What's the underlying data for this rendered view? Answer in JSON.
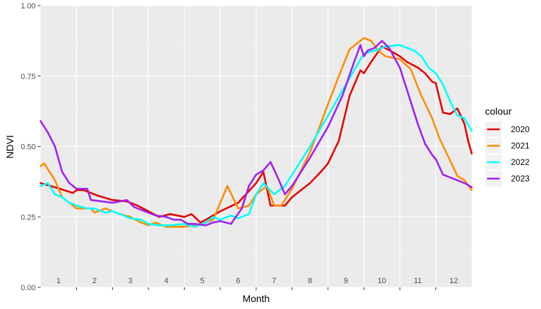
{
  "chart_data": {
    "type": "line",
    "xlabel": "Month",
    "ylabel": "NDVI",
    "ylim": [
      0,
      1
    ],
    "xlim": [
      0,
      12
    ],
    "y_ticks": [
      "0.00",
      "0.25",
      "0.50",
      "0.75",
      "1.00"
    ],
    "y_tick_values": [
      0,
      0.25,
      0.5,
      0.75,
      1.0
    ],
    "month_labels": [
      "1",
      "2",
      "3",
      "4",
      "5",
      "6",
      "7",
      "8",
      "9",
      "10",
      "11",
      "12"
    ],
    "grid": true,
    "legend": {
      "title": "colour",
      "position": "right"
    },
    "series": [
      {
        "name": "2020",
        "color": "#e60000",
        "x": [
          0.0,
          0.4,
          0.9,
          1.0,
          1.2,
          1.6,
          2.0,
          2.4,
          2.7,
          3.0,
          3.3,
          3.6,
          3.8,
          4.0,
          4.2,
          4.45,
          4.6,
          5.0,
          5.5,
          6.0,
          6.2,
          6.4,
          6.8,
          7.0,
          7.5,
          7.8,
          8.0,
          8.3,
          8.6,
          8.9,
          9.0,
          9.2,
          9.5,
          9.8,
          10.0,
          10.2,
          10.5,
          10.7,
          10.9,
          11.0,
          11.2,
          11.4,
          11.6,
          11.8,
          11.9,
          12.0
        ],
        "y": [
          0.37,
          0.355,
          0.335,
          0.345,
          0.345,
          0.325,
          0.31,
          0.305,
          0.29,
          0.27,
          0.25,
          0.26,
          0.255,
          0.25,
          0.26,
          0.23,
          0.24,
          0.27,
          0.3,
          0.37,
          0.41,
          0.29,
          0.29,
          0.32,
          0.37,
          0.41,
          0.44,
          0.52,
          0.68,
          0.77,
          0.76,
          0.8,
          0.855,
          0.835,
          0.82,
          0.8,
          0.78,
          0.76,
          0.73,
          0.725,
          0.62,
          0.615,
          0.635,
          0.58,
          0.52,
          0.475
        ]
      },
      {
        "name": "2021",
        "color": "#ff8c00",
        "x": [
          0.0,
          0.1,
          0.4,
          0.6,
          0.9,
          1.0,
          1.4,
          1.5,
          1.8,
          2.0,
          2.2,
          2.5,
          2.8,
          3.0,
          3.2,
          3.5,
          4.0,
          4.5,
          4.8,
          5.0,
          5.2,
          5.5,
          5.8,
          6.0,
          6.3,
          6.5,
          6.7,
          7.0,
          7.5,
          8.0,
          8.3,
          8.6,
          9.0,
          9.2,
          9.4,
          9.6,
          10.0,
          10.3,
          10.6,
          10.9,
          11.1,
          11.4,
          11.6,
          11.8,
          12.0
        ],
        "y": [
          0.43,
          0.44,
          0.38,
          0.32,
          0.29,
          0.28,
          0.28,
          0.265,
          0.28,
          0.27,
          0.26,
          0.25,
          0.23,
          0.22,
          0.23,
          0.215,
          0.215,
          0.225,
          0.24,
          0.3,
          0.36,
          0.28,
          0.29,
          0.33,
          0.36,
          0.29,
          0.29,
          0.35,
          0.48,
          0.65,
          0.75,
          0.845,
          0.885,
          0.875,
          0.84,
          0.82,
          0.81,
          0.775,
          0.68,
          0.6,
          0.53,
          0.45,
          0.395,
          0.38,
          0.345
        ]
      },
      {
        "name": "2022",
        "color": "#00ffff",
        "x": [
          0.0,
          0.2,
          0.4,
          0.6,
          0.8,
          1.0,
          1.3,
          1.5,
          1.8,
          2.0,
          2.3,
          2.5,
          2.8,
          3.0,
          3.3,
          3.6,
          4.0,
          4.3,
          4.6,
          4.8,
          5.0,
          5.3,
          5.5,
          5.8,
          6.0,
          6.2,
          6.5,
          6.8,
          7.0,
          7.5,
          8.0,
          8.5,
          9.0,
          9.3,
          9.6,
          10.0,
          10.4,
          10.6,
          10.8,
          11.0,
          11.2,
          11.4,
          11.6,
          11.8,
          12.0
        ],
        "y": [
          0.36,
          0.37,
          0.33,
          0.32,
          0.3,
          0.29,
          0.28,
          0.28,
          0.265,
          0.27,
          0.255,
          0.245,
          0.24,
          0.225,
          0.22,
          0.22,
          0.225,
          0.215,
          0.23,
          0.25,
          0.24,
          0.255,
          0.245,
          0.26,
          0.33,
          0.37,
          0.33,
          0.36,
          0.4,
          0.5,
          0.61,
          0.72,
          0.83,
          0.84,
          0.855,
          0.86,
          0.84,
          0.82,
          0.78,
          0.76,
          0.72,
          0.66,
          0.61,
          0.6,
          0.555
        ]
      },
      {
        "name": "2023",
        "color": "#a020f0",
        "x": [
          0.0,
          0.2,
          0.4,
          0.6,
          0.8,
          1.0,
          1.3,
          1.4,
          1.7,
          2.0,
          2.4,
          2.6,
          2.9,
          3.2,
          3.5,
          3.7,
          3.9,
          4.1,
          4.3,
          4.6,
          4.8,
          5.0,
          5.3,
          5.6,
          5.8,
          6.0,
          6.2,
          6.4,
          6.6,
          6.8,
          7.0,
          7.5,
          8.0,
          8.4,
          8.7,
          8.9,
          9.0,
          9.1,
          9.3,
          9.5,
          9.7,
          10.0,
          10.2,
          10.5,
          10.7,
          10.9,
          11.0,
          11.2,
          11.4,
          11.6,
          11.8,
          12.0
        ],
        "y": [
          0.59,
          0.55,
          0.5,
          0.41,
          0.37,
          0.35,
          0.35,
          0.31,
          0.305,
          0.3,
          0.31,
          0.285,
          0.27,
          0.255,
          0.25,
          0.24,
          0.24,
          0.225,
          0.225,
          0.22,
          0.23,
          0.235,
          0.225,
          0.28,
          0.36,
          0.4,
          0.415,
          0.445,
          0.39,
          0.33,
          0.36,
          0.46,
          0.57,
          0.68,
          0.79,
          0.86,
          0.82,
          0.84,
          0.85,
          0.875,
          0.85,
          0.78,
          0.7,
          0.58,
          0.51,
          0.47,
          0.455,
          0.4,
          0.39,
          0.38,
          0.37,
          0.355
        ]
      }
    ]
  }
}
